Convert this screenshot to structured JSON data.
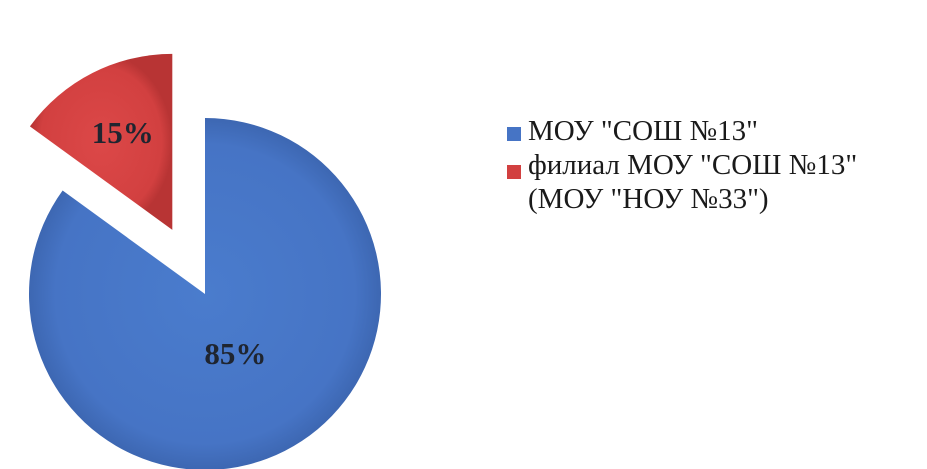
{
  "chart_data": {
    "type": "pie",
    "title": "",
    "categories": [
      "МОУ \"СОШ №13\"",
      "филиал МОУ \"СОШ №13\"\n(МОУ \"НОУ №33\")"
    ],
    "values": [
      85,
      15
    ],
    "data_labels": [
      "85%",
      "15%"
    ],
    "colors": [
      "#4674c5",
      "#d24040"
    ],
    "exploded_slice": 1,
    "legend_position": "right"
  }
}
